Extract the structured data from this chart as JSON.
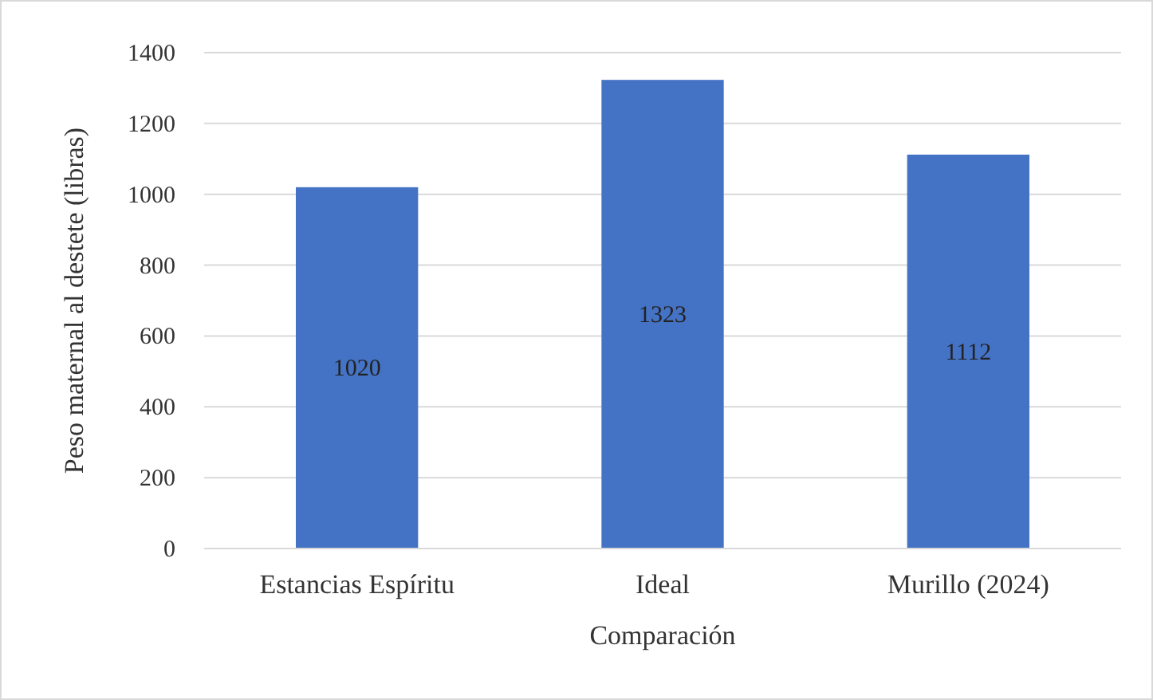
{
  "chart_data": {
    "type": "bar",
    "xlabel": "Comparación",
    "ylabel": "Peso maternal al destete (libras)",
    "categories": [
      "Estancias Espíritu",
      "Ideal",
      "Murillo (2024)"
    ],
    "values": [
      1020,
      1323,
      1112
    ],
    "color": "#4472c4",
    "ylim": [
      0,
      1400
    ],
    "yticks": [
      0,
      200,
      400,
      600,
      800,
      1000,
      1200,
      1400
    ],
    "grid": "y",
    "data_labels": true
  }
}
